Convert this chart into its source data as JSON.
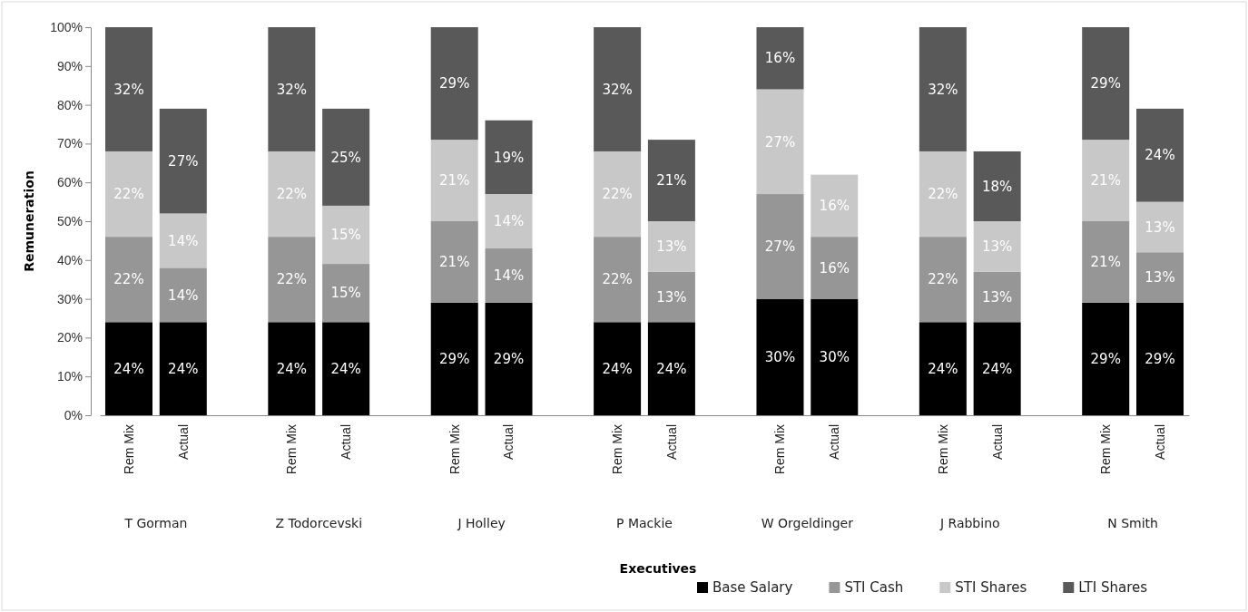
{
  "chart_data": {
    "type": "bar",
    "stacked": true,
    "ylabel": "Remuneration",
    "categories": [
      "Rem Mix",
      "Actual",
      null,
      "Rem Mix",
      "Actual",
      null,
      "Rem Mix",
      "Actual",
      null,
      "Rem Mix",
      "Actual",
      null,
      "Rem Mix",
      "Actual",
      null,
      "Rem Mix",
      "Actual",
      null,
      "Rem Mix",
      "Actual"
    ],
    "annotations": [
      "T Gorman",
      "Z Todorcevski",
      "J Holley",
      "P Mackie",
      "W Orgeldinger",
      "J Rabbino",
      "N Smith",
      "Executives"
    ],
    "series": [
      {
        "name": "Base Salary",
        "color": "#000000",
        "values": [
          24,
          24,
          null,
          24,
          24,
          null,
          29,
          29,
          null,
          24,
          24,
          null,
          30,
          30,
          null,
          24,
          24,
          null,
          29,
          29
        ],
        "value_labels": [
          "24%",
          "24%",
          null,
          "24%",
          "24%",
          null,
          "29%",
          "29%",
          null,
          "24%",
          "24%",
          null,
          "30%",
          "30%",
          null,
          "24%",
          "24%",
          null,
          "29%",
          "29%"
        ]
      },
      {
        "name": "STI Cash",
        "color": "#969696",
        "values": [
          22,
          14,
          null,
          22,
          15,
          null,
          21,
          14,
          null,
          22,
          13,
          null,
          27,
          16,
          null,
          22,
          13,
          null,
          21,
          13
        ],
        "value_labels": [
          "22%",
          "14%",
          null,
          "22%",
          "15%",
          null,
          "21%",
          "14%",
          null,
          "22%",
          "13%",
          null,
          "27%",
          "16%",
          null,
          "22%",
          "13%",
          null,
          "21%",
          "13%"
        ]
      },
      {
        "name": "STI Shares",
        "color": "#c8c8c8",
        "values": [
          22,
          14,
          null,
          22,
          15,
          null,
          21,
          14,
          null,
          22,
          13,
          null,
          27,
          16,
          null,
          22,
          13,
          null,
          21,
          13
        ],
        "value_labels": [
          "22%",
          "14%",
          null,
          "22%",
          "15%",
          null,
          "21%",
          "14%",
          null,
          "22%",
          "13%",
          null,
          "27%",
          "16%",
          null,
          "22%",
          "13%",
          null,
          "21%",
          "13%"
        ]
      },
      {
        "name": "LTI Shares",
        "color": "#595959",
        "values": [
          32,
          27,
          null,
          32,
          25,
          null,
          29,
          19,
          null,
          32,
          21,
          null,
          16,
          null,
          null,
          32,
          18,
          null,
          29,
          24
        ],
        "value_labels": [
          "32%",
          "27%",
          null,
          "32%",
          "25%",
          null,
          "29%",
          "19%",
          null,
          "32%",
          "21%",
          null,
          "16%",
          null,
          null,
          "32%",
          "18%",
          null,
          "29%",
          "24%"
        ]
      }
    ],
    "ylim": [
      0,
      100
    ],
    "yticks": [
      {
        "value": 0,
        "label": "0%"
      },
      {
        "value": 10,
        "label": "10%"
      },
      {
        "value": 20,
        "label": "20%"
      },
      {
        "value": 30,
        "label": "30%"
      },
      {
        "value": 40,
        "label": "40%"
      },
      {
        "value": 50,
        "label": "50%"
      },
      {
        "value": 60,
        "label": "60%"
      },
      {
        "value": 70,
        "label": "70%"
      },
      {
        "value": 80,
        "label": "80%"
      },
      {
        "value": 90,
        "label": "90%"
      },
      {
        "value": 100,
        "label": "100%"
      }
    ],
    "grid": false,
    "legend": "bottom"
  }
}
